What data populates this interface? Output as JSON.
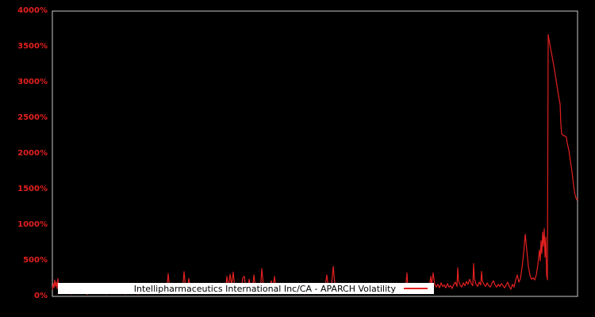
{
  "colors": {
    "background": "#000000",
    "plot_background": "#000000",
    "frame": "#c8c8c8",
    "series_red": "#e3201f",
    "tick_label_red": "#e3201f",
    "legend_background": "#ffffff",
    "legend_text": "#000000"
  },
  "chart_data": {
    "type": "line",
    "title": "",
    "xlabel": "",
    "ylabel": "",
    "x_axis_tick_labels": "none",
    "legend_position": "bottom-center",
    "ylim": [
      0,
      4000
    ],
    "xlim": [
      0,
      662
    ],
    "grid": "off",
    "yticks": [
      {
        "value": 0,
        "label": "0%"
      },
      {
        "value": 500,
        "label": "500%"
      },
      {
        "value": 1000,
        "label": "1000%"
      },
      {
        "value": 1500,
        "label": "1500%"
      },
      {
        "value": 2000,
        "label": "2000%"
      },
      {
        "value": 2500,
        "label": "2500%"
      },
      {
        "value": 3000,
        "label": "3000%"
      },
      {
        "value": 3500,
        "label": "3500%"
      },
      {
        "value": 4000,
        "label": "4000%"
      }
    ],
    "series": [
      {
        "name": "Intellipharmaceutics International Inc/CA - APARCH Volatility",
        "color": "#e3201f",
        "unit": "percent",
        "points": [
          [
            0,
            95
          ],
          [
            1,
            180
          ],
          [
            2,
            120
          ],
          [
            3,
            230
          ],
          [
            4,
            140
          ],
          [
            5,
            200
          ],
          [
            6,
            110
          ],
          [
            7,
            250
          ],
          [
            8,
            130
          ],
          [
            9,
            90
          ],
          [
            10,
            160
          ],
          [
            11,
            70
          ],
          [
            12,
            110
          ],
          [
            16,
            45
          ],
          [
            20,
            80
          ],
          [
            24,
            35
          ],
          [
            28,
            60
          ],
          [
            32,
            100
          ],
          [
            36,
            40
          ],
          [
            40,
            70
          ],
          [
            44,
            30
          ],
          [
            48,
            85
          ],
          [
            52,
            50
          ],
          [
            56,
            120
          ],
          [
            60,
            45
          ],
          [
            64,
            75
          ],
          [
            68,
            35
          ],
          [
            72,
            90
          ],
          [
            76,
            55
          ],
          [
            80,
            40
          ],
          [
            84,
            110
          ],
          [
            88,
            60
          ],
          [
            92,
            35
          ],
          [
            96,
            80
          ],
          [
            100,
            45
          ],
          [
            104,
            65
          ],
          [
            108,
            30
          ],
          [
            112,
            95
          ],
          [
            116,
            50
          ],
          [
            120,
            70
          ],
          [
            124,
            40
          ],
          [
            128,
            85
          ],
          [
            132,
            55
          ],
          [
            136,
            100
          ],
          [
            140,
            45
          ],
          [
            144,
            60
          ],
          [
            146,
            320
          ],
          [
            148,
            90
          ],
          [
            152,
            55
          ],
          [
            156,
            75
          ],
          [
            160,
            40
          ],
          [
            164,
            65
          ],
          [
            166,
            345
          ],
          [
            168,
            120
          ],
          [
            170,
            80
          ],
          [
            172,
            250
          ],
          [
            174,
            90
          ],
          [
            178,
            60
          ],
          [
            182,
            45
          ],
          [
            186,
            70
          ],
          [
            190,
            50
          ],
          [
            194,
            85
          ],
          [
            198,
            40
          ],
          [
            202,
            180
          ],
          [
            206,
            55
          ],
          [
            210,
            90
          ],
          [
            214,
            60
          ],
          [
            218,
            45
          ],
          [
            220,
            280
          ],
          [
            222,
            130
          ],
          [
            224,
            310
          ],
          [
            226,
            160
          ],
          [
            228,
            340
          ],
          [
            230,
            110
          ],
          [
            232,
            70
          ],
          [
            234,
            55
          ],
          [
            238,
            85
          ],
          [
            240,
            260
          ],
          [
            242,
            280
          ],
          [
            244,
            100
          ],
          [
            246,
            60
          ],
          [
            248,
            240
          ],
          [
            250,
            120
          ],
          [
            252,
            75
          ],
          [
            254,
            300
          ],
          [
            256,
            130
          ],
          [
            258,
            60
          ],
          [
            260,
            90
          ],
          [
            262,
            50
          ],
          [
            264,
            390
          ],
          [
            266,
            150
          ],
          [
            268,
            80
          ],
          [
            270,
            55
          ],
          [
            274,
            70
          ],
          [
            276,
            220
          ],
          [
            278,
            90
          ],
          [
            280,
            280
          ],
          [
            282,
            110
          ],
          [
            284,
            60
          ],
          [
            286,
            45
          ],
          [
            288,
            75
          ],
          [
            290,
            50
          ],
          [
            294,
            80
          ],
          [
            298,
            40
          ],
          [
            302,
            65
          ],
          [
            306,
            95
          ],
          [
            310,
            45
          ],
          [
            314,
            70
          ],
          [
            318,
            35
          ],
          [
            322,
            85
          ],
          [
            326,
            55
          ],
          [
            330,
            75
          ],
          [
            334,
            45
          ],
          [
            338,
            60
          ],
          [
            342,
            90
          ],
          [
            344,
            150
          ],
          [
            346,
            300
          ],
          [
            348,
            120
          ],
          [
            350,
            80
          ],
          [
            352,
            160
          ],
          [
            354,
            420
          ],
          [
            356,
            180
          ],
          [
            358,
            90
          ],
          [
            362,
            60
          ],
          [
            366,
            85
          ],
          [
            370,
            45
          ],
          [
            374,
            70
          ],
          [
            378,
            110
          ],
          [
            382,
            55
          ],
          [
            386,
            80
          ],
          [
            390,
            40
          ],
          [
            394,
            95
          ],
          [
            398,
            60
          ],
          [
            402,
            75
          ],
          [
            406,
            45
          ],
          [
            410,
            85
          ],
          [
            414,
            55
          ],
          [
            418,
            100
          ],
          [
            422,
            65
          ],
          [
            426,
            80
          ],
          [
            430,
            50
          ],
          [
            434,
            90
          ],
          [
            438,
            60
          ],
          [
            442,
            75
          ],
          [
            444,
            100
          ],
          [
            446,
            200
          ],
          [
            447,
            330
          ],
          [
            448,
            150
          ],
          [
            450,
            90
          ],
          [
            454,
            70
          ],
          [
            458,
            95
          ],
          [
            462,
            55
          ],
          [
            466,
            80
          ],
          [
            470,
            110
          ],
          [
            474,
            65
          ],
          [
            477,
            280
          ],
          [
            478,
            150
          ],
          [
            480,
            330
          ],
          [
            482,
            170
          ],
          [
            484,
            130
          ],
          [
            486,
            170
          ],
          [
            488,
            120
          ],
          [
            490,
            190
          ],
          [
            492,
            140
          ],
          [
            494,
            160
          ],
          [
            496,
            120
          ],
          [
            498,
            180
          ],
          [
            500,
            130
          ],
          [
            502,
            150
          ],
          [
            504,
            110
          ],
          [
            506,
            170
          ],
          [
            508,
            200
          ],
          [
            510,
            140
          ],
          [
            511,
            400
          ],
          [
            512,
            220
          ],
          [
            514,
            160
          ],
          [
            516,
            130
          ],
          [
            518,
            190
          ],
          [
            520,
            150
          ],
          [
            522,
            210
          ],
          [
            524,
            170
          ],
          [
            526,
            240
          ],
          [
            528,
            180
          ],
          [
            530,
            150
          ],
          [
            531,
            460
          ],
          [
            532,
            250
          ],
          [
            534,
            170
          ],
          [
            536,
            140
          ],
          [
            538,
            200
          ],
          [
            540,
            160
          ],
          [
            541,
            350
          ],
          [
            542,
            220
          ],
          [
            544,
            170
          ],
          [
            546,
            140
          ],
          [
            548,
            190
          ],
          [
            550,
            150
          ],
          [
            552,
            130
          ],
          [
            554,
            180
          ],
          [
            556,
            220
          ],
          [
            558,
            160
          ],
          [
            560,
            130
          ],
          [
            562,
            170
          ],
          [
            564,
            140
          ],
          [
            566,
            180
          ],
          [
            568,
            150
          ],
          [
            570,
            120
          ],
          [
            572,
            160
          ],
          [
            574,
            200
          ],
          [
            576,
            140
          ],
          [
            578,
            100
          ],
          [
            580,
            170
          ],
          [
            582,
            130
          ],
          [
            584,
            230
          ],
          [
            586,
            300
          ],
          [
            588,
            200
          ],
          [
            590,
            250
          ],
          [
            592,
            400
          ],
          [
            594,
            600
          ],
          [
            596,
            870
          ],
          [
            598,
            650
          ],
          [
            600,
            420
          ],
          [
            602,
            300
          ],
          [
            604,
            240
          ],
          [
            606,
            260
          ],
          [
            608,
            230
          ],
          [
            610,
            300
          ],
          [
            612,
            450
          ],
          [
            614,
            650
          ],
          [
            615,
            500
          ],
          [
            616,
            780
          ],
          [
            617,
            600
          ],
          [
            618,
            900
          ],
          [
            619,
            700
          ],
          [
            620,
            950
          ],
          [
            621,
            550
          ],
          [
            622,
            830
          ],
          [
            623,
            300
          ],
          [
            624,
            233
          ],
          [
            625,
            3670
          ],
          [
            626,
            3600
          ],
          [
            628,
            3480
          ],
          [
            630,
            3360
          ],
          [
            632,
            3240
          ],
          [
            634,
            3100
          ],
          [
            636,
            2960
          ],
          [
            638,
            2820
          ],
          [
            639,
            2750
          ],
          [
            640,
            2700
          ],
          [
            641,
            2400
          ],
          [
            642,
            2280
          ],
          [
            644,
            2255
          ],
          [
            646,
            2250
          ],
          [
            648,
            2230
          ],
          [
            649,
            2150
          ],
          [
            651,
            2050
          ],
          [
            653,
            1900
          ],
          [
            655,
            1750
          ],
          [
            656,
            1650
          ],
          [
            657,
            1560
          ],
          [
            658,
            1480
          ],
          [
            659,
            1420
          ],
          [
            660,
            1380
          ],
          [
            661,
            1355
          ],
          [
            662,
            1370
          ]
        ]
      }
    ]
  }
}
